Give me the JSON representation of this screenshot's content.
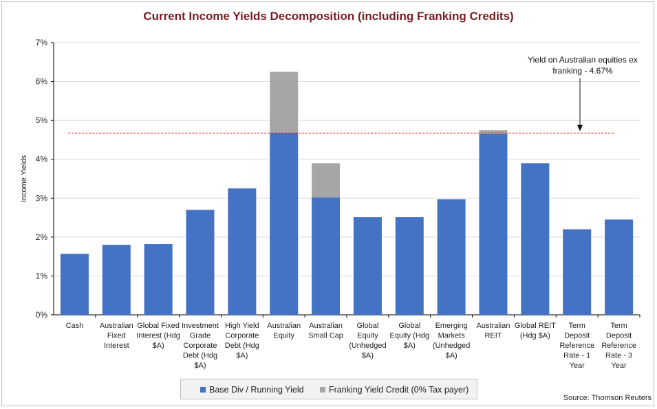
{
  "chart_data": {
    "type": "bar",
    "stacked": true,
    "title": "Current Income Yields Decomposition (including Franking Credits)",
    "ylabel": "Income Yields",
    "xlabel": "",
    "ylim": [
      0,
      7
    ],
    "yticks": [
      "0%",
      "1%",
      "2%",
      "3%",
      "4%",
      "5%",
      "6%",
      "7%"
    ],
    "grid": true,
    "categories": [
      [
        "Cash"
      ],
      [
        "Australian",
        "Fixed",
        "Interest"
      ],
      [
        "Global Fixed",
        "Interest (Hdg",
        "$A)"
      ],
      [
        "Investment",
        "Grade",
        "Corporate",
        "Debt (Hdg",
        "$A)"
      ],
      [
        "High Yield",
        "Corporate",
        "Debt (Hdg",
        "$A)"
      ],
      [
        "Australian",
        "Equity"
      ],
      [
        "Australian",
        "Small Cap"
      ],
      [
        "Global",
        "Equity",
        "(Unhedged",
        "$A)"
      ],
      [
        "Global",
        "Equity (Hdg",
        "$A)"
      ],
      [
        "Emerging",
        "Markets",
        "(Unhedged",
        "$A)"
      ],
      [
        "Australian",
        "REIT"
      ],
      [
        "Global REIT",
        "(Hdg $A)"
      ],
      [
        "Term",
        "Deposit",
        "Reference",
        "Rate - 1",
        "Year"
      ],
      [
        "Term",
        "Deposit",
        "Reference",
        "Rate - 3",
        "Year"
      ]
    ],
    "series": [
      {
        "name": "Base Div / Running Yield",
        "color": "#4472c4",
        "values": [
          1.57,
          1.8,
          1.82,
          2.7,
          3.25,
          4.67,
          3.02,
          2.51,
          2.51,
          2.97,
          4.65,
          3.9,
          2.2,
          2.45
        ]
      },
      {
        "name": "Franking Yield Credit (0% Tax payer)",
        "color": "#a6a6a6",
        "values": [
          0,
          0,
          0,
          0,
          0,
          1.58,
          0.88,
          0,
          0,
          0,
          0.1,
          0,
          0,
          0
        ]
      }
    ],
    "reference_line": {
      "value": 4.67,
      "color": "#cc0000",
      "style": "dashed"
    },
    "annotation": {
      "lines": [
        "Yield on Australian equities ex",
        "franking - 4.67%"
      ]
    },
    "legend_position": "bottom"
  },
  "source": "Source: Thomson Reuters"
}
